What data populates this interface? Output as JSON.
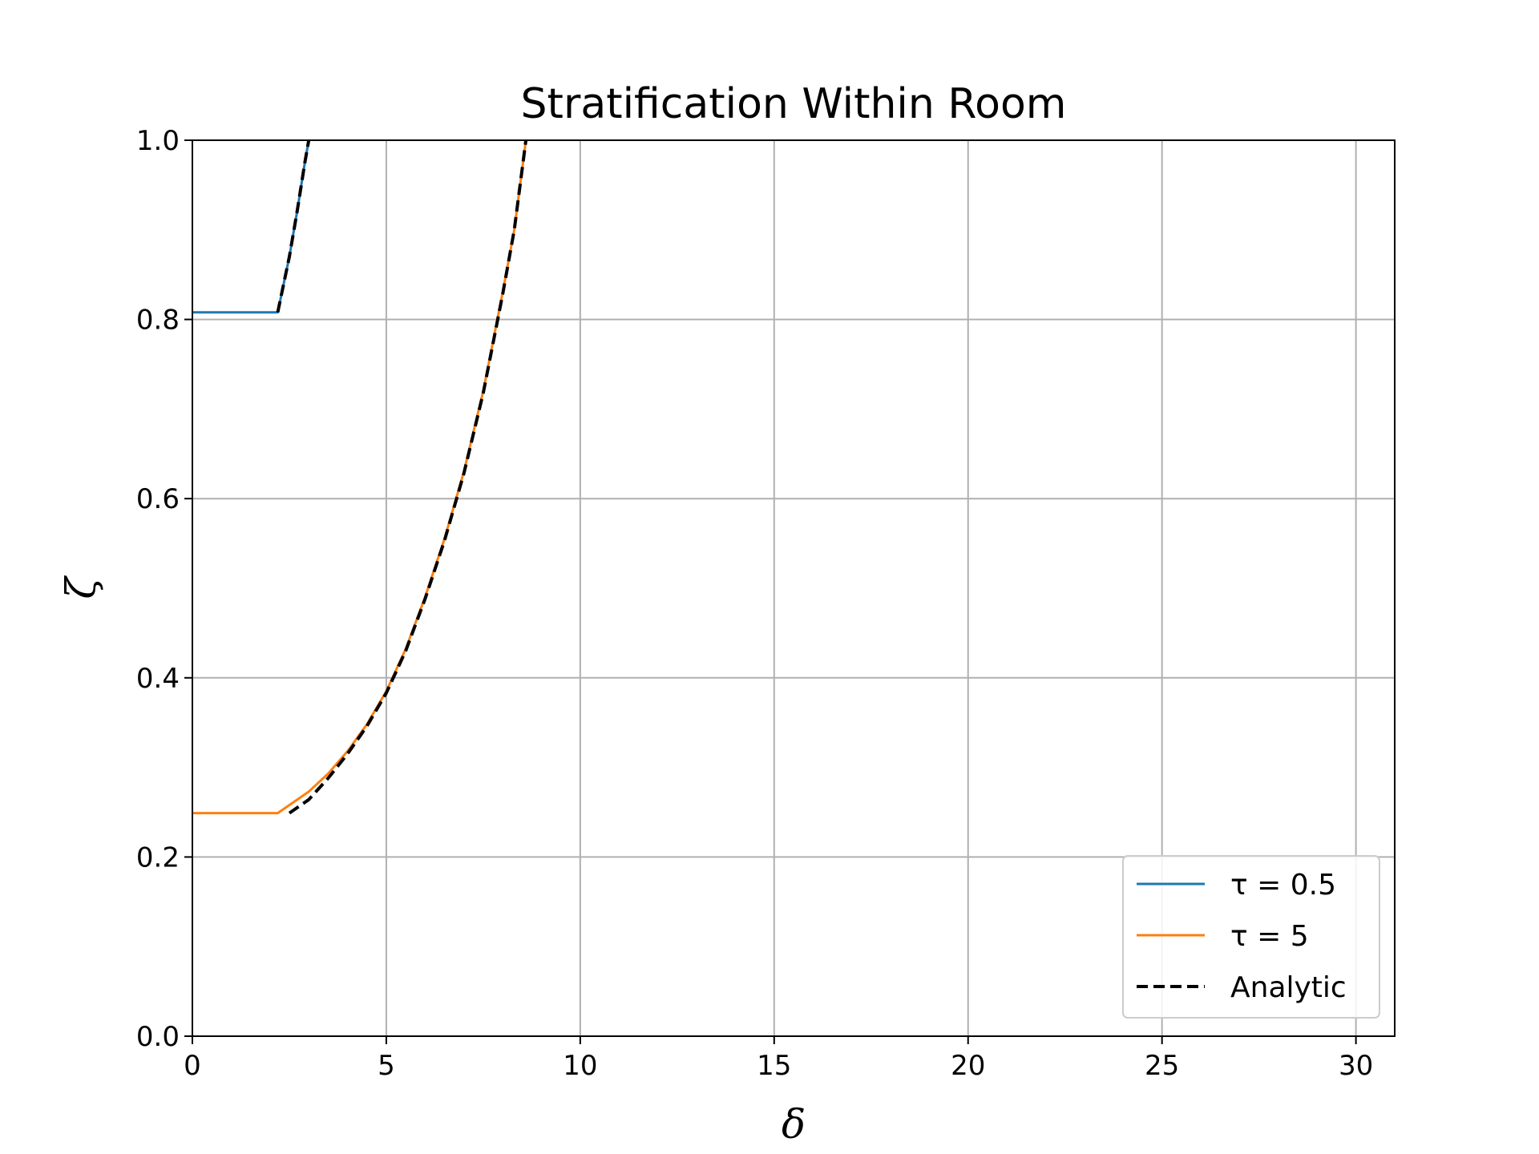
{
  "chart_data": {
    "type": "line",
    "title": "Stratification Within Room",
    "xlabel": "δ",
    "ylabel": "ζ",
    "xlim": [
      0,
      31
    ],
    "ylim": [
      0,
      1
    ],
    "xticks": [
      0,
      5,
      10,
      15,
      20,
      25,
      30
    ],
    "xtick_labels": [
      "0",
      "5",
      "10",
      "15",
      "20",
      "25",
      "30"
    ],
    "yticks": [
      0,
      0.2,
      0.4,
      0.6,
      0.8,
      1.0
    ],
    "ytick_labels": [
      "0.0",
      "0.2",
      "0.4",
      "0.6",
      "0.8",
      "1.0"
    ],
    "grid": true,
    "legend_position": "lower-right",
    "series": [
      {
        "name": "τ = 0.5",
        "color": "#1f77b4",
        "style": "solid",
        "x": [
          0,
          2.2,
          2.5,
          2.7,
          2.9,
          3.0
        ],
        "y": [
          0.808,
          0.808,
          0.87,
          0.92,
          0.975,
          1.0
        ]
      },
      {
        "name": "τ = 5",
        "color": "#ff7f0e",
        "style": "solid",
        "x": [
          0,
          2.2,
          3.0,
          3.5,
          4.0,
          4.5,
          5.0,
          5.5,
          6.0,
          6.5,
          7.0,
          7.5,
          8.0,
          8.3,
          8.6
        ],
        "y": [
          0.249,
          0.249,
          0.273,
          0.293,
          0.318,
          0.348,
          0.385,
          0.432,
          0.49,
          0.555,
          0.63,
          0.72,
          0.83,
          0.9,
          1.0
        ]
      },
      {
        "name": "Analytic",
        "color": "#000000",
        "style": "dashed",
        "x": [
          2.2,
          2.5,
          2.7,
          2.9,
          3.0
        ],
        "y": [
          0.808,
          0.87,
          0.92,
          0.975,
          1.0
        ]
      },
      {
        "name": "Analytic",
        "color": "#000000",
        "style": "dashed",
        "legend": false,
        "x": [
          2.5,
          3.0,
          3.5,
          4.0,
          4.5,
          5.0,
          5.5,
          6.0,
          6.5,
          7.0,
          7.5,
          8.0,
          8.3,
          8.6
        ],
        "y": [
          0.249,
          0.264,
          0.288,
          0.315,
          0.346,
          0.383,
          0.43,
          0.488,
          0.553,
          0.628,
          0.718,
          0.828,
          0.9,
          1.0
        ]
      }
    ]
  }
}
